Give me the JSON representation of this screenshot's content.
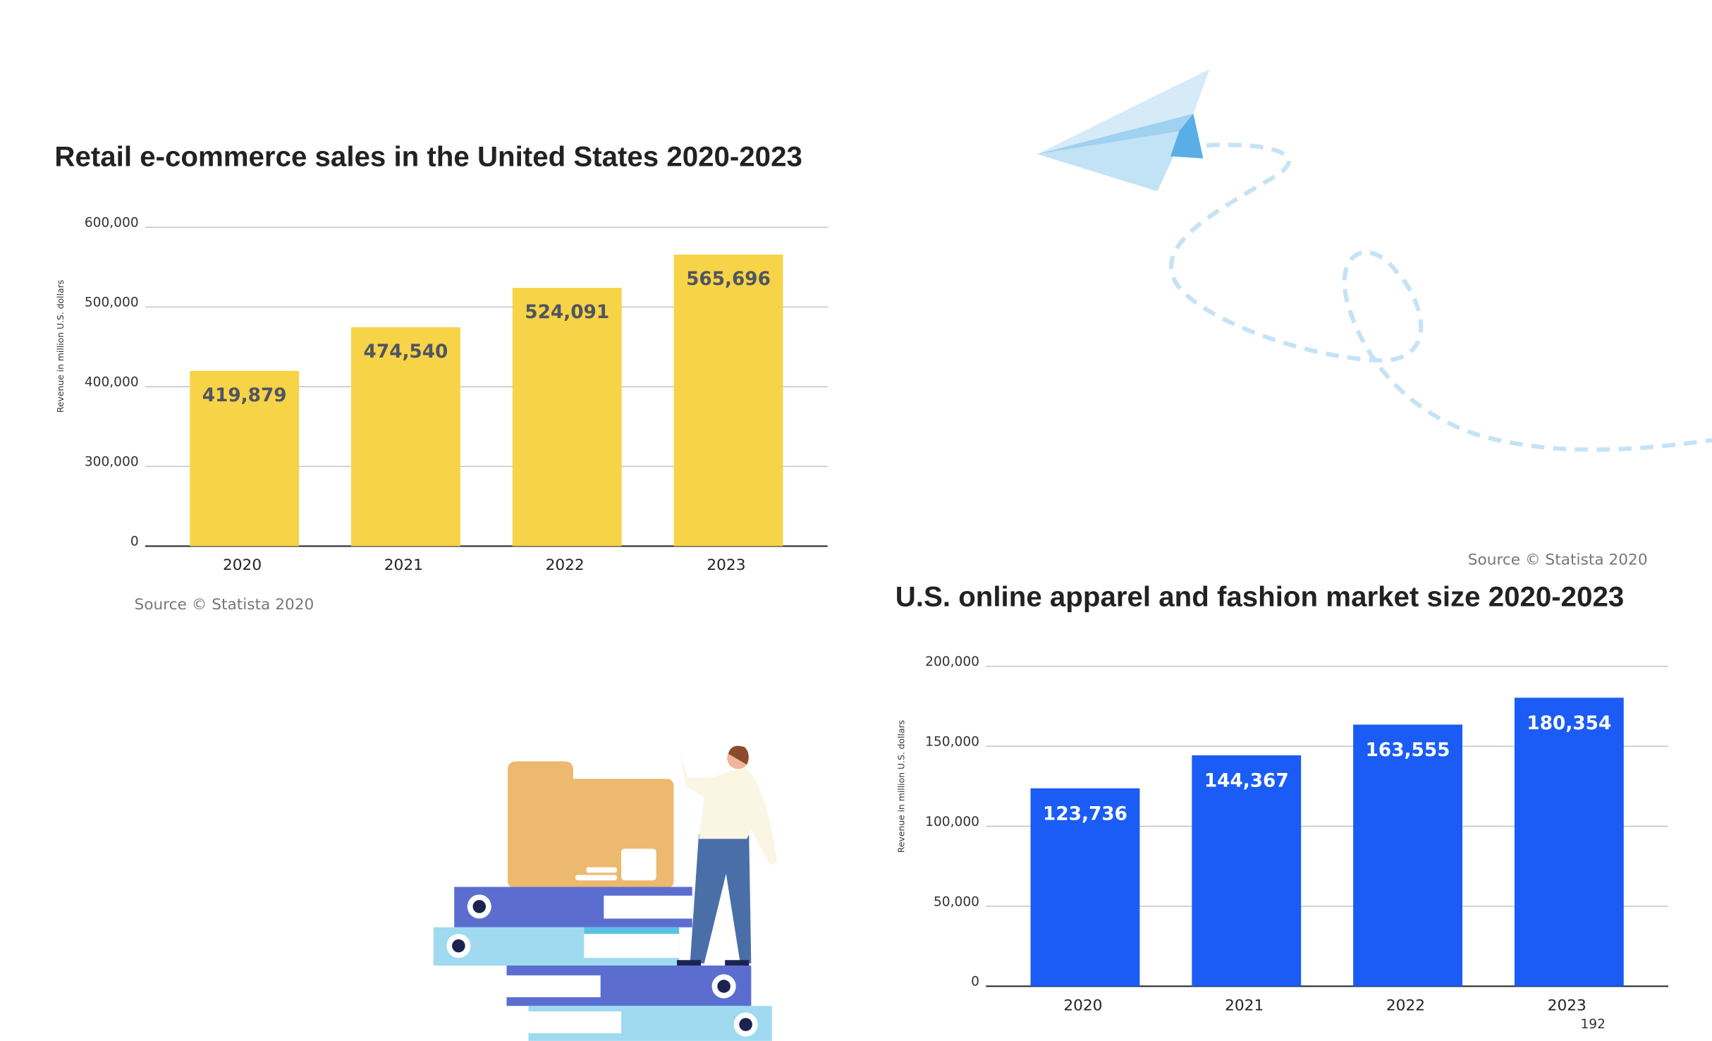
{
  "charts": [
    {
      "type": "bar",
      "title": "Retail e-commerce sales in the United States 2020-2023",
      "y_label": "Revenue in million U.S. dollars",
      "categories": [
        "2020",
        "2021",
        "2022",
        "2023"
      ],
      "values": [
        419879,
        474540,
        524091,
        565696
      ],
      "value_labels": [
        "419,879",
        "474,540",
        "524,091",
        "565,696"
      ],
      "color": "#f7d347",
      "label_color": "#505560",
      "ylim": [
        0,
        600000
      ],
      "y_scale": "broken",
      "yticks": [
        {
          "value": 0,
          "label": "0"
        },
        {
          "value": 300000,
          "label": "300,000"
        },
        {
          "value": 400000,
          "label": "400,000"
        },
        {
          "value": 500000,
          "label": "500,000"
        },
        {
          "value": 600000,
          "label": "600,000"
        }
      ],
      "grid": true,
      "source": "Source © Statista 2020"
    },
    {
      "type": "bar",
      "title": "U.S. online apparel and fashion market size 2020-2023",
      "y_label": "Revenue in million U.S. dollars",
      "categories": [
        "2020",
        "2021",
        "2022",
        "2023"
      ],
      "values": [
        123736,
        144367,
        163555,
        180354
      ],
      "value_labels": [
        "123,736",
        "144,367",
        "163,555",
        "180,354"
      ],
      "color": "#1a5cf5",
      "label_color": "#ffffff",
      "ylim": [
        0,
        200000
      ],
      "y_scale": "linear",
      "yticks": [
        0,
        {
          "value": 50000,
          "label": "50,000"
        },
        {
          "value": 100000,
          "label": "100,000"
        },
        {
          "value": 150000,
          "label": "150,000"
        },
        {
          "value": 200000,
          "label": "200,000"
        }
      ],
      "grid": true,
      "source": "Source © Statista 2020"
    }
  ],
  "page_number": "192"
}
